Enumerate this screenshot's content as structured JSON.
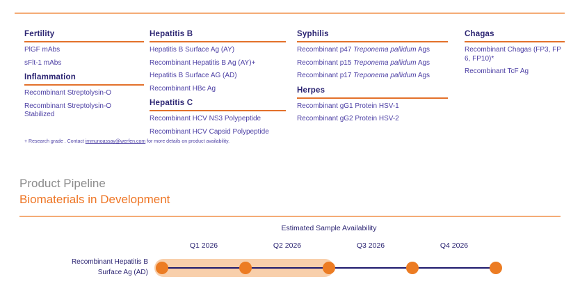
{
  "colors": {
    "heading_navy": "#2b2472",
    "item_indigo": "#4c3fa4",
    "underline_orange": "#e3712b",
    "light_orange_rule": "#f4ac76",
    "title_orange": "#ee7524",
    "eyebrow_gray": "#8c8c8c",
    "highlight_band": "#f8cfab",
    "milestone_dot": "#ec7c23",
    "timeline_line": "#1e1a6d"
  },
  "catalog": {
    "columns": [
      {
        "sections": [
          {
            "heading": "Fertility",
            "items": [
              "PlGF mAbs",
              "sFlt-1 mAbs"
            ]
          },
          {
            "heading": "Inflammation",
            "items": [
              "Recombinant Streptolysin-O",
              "Recombinant Streptolysin-O Stabilized"
            ]
          }
        ]
      },
      {
        "sections": [
          {
            "heading": "Hepatitis B",
            "items": [
              "Hepatitis B Surface Ag (AY)",
              "Recombinant Hepatitis B Ag (AY)+",
              "Hepatitis B Surface AG (AD)",
              "Recombinant HBc Ag"
            ]
          },
          {
            "heading": "Hepatitis C",
            "items": [
              "Recombinant HCV NS3 Polypeptide",
              "Recombinant HCV Capsid Polypeptide"
            ]
          }
        ]
      },
      {
        "sections": [
          {
            "heading": "Syphilis",
            "items": [
              {
                "pre": "Recombinant p47 ",
                "italic": "Treponema pallidum",
                "post": " Ags"
              },
              {
                "pre": "Recombinant p15 ",
                "italic": "Treponema pallidum",
                "post": " Ags"
              },
              {
                "pre": "Recombinant p17 ",
                "italic": "Treponema pallidum",
                "post": " Ags"
              }
            ]
          },
          {
            "heading": "Herpes",
            "items": [
              "Recombinant gG1 Protein HSV-1",
              "Recombinant gG2 Protein HSV-2"
            ]
          }
        ]
      },
      {
        "sections": [
          {
            "heading": "Chagas",
            "items": [
              "Recombinant Chagas (FP3, FP6, FP10)*",
              "Recombinant TcF Ag"
            ]
          }
        ]
      }
    ]
  },
  "footnote": {
    "text_before_link": "+ Research grade . Contact ",
    "link": "immunoassay@werfen.com",
    "text_after_link": " for more details on product availability."
  },
  "pipeline": {
    "eyebrow": "Product Pipeline",
    "title": "Biomaterials in Development"
  },
  "timeline": {
    "header": "Estimated Sample Availability",
    "quarters": [
      "Q1 2026",
      "Q2 2026",
      "Q3 2026",
      "Q4 2026"
    ],
    "row": {
      "label_line1": "Recombinant Hepatitis B",
      "label_line2": "Surface Ag (AD)",
      "milestone_count": 5,
      "highlight_range": "Q1 2026 – Q2 2026"
    }
  }
}
